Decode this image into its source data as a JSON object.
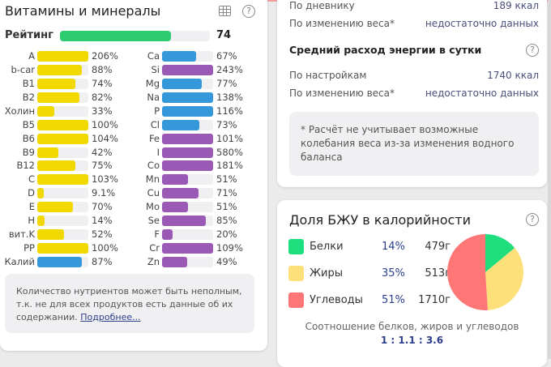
{
  "vitamins": {
    "title": "Витамины и минералы",
    "rating_label": "Рейтинг",
    "rating_value": "74",
    "rating_percent": 74,
    "left": [
      {
        "name": "A",
        "value": "206%",
        "pct": 206,
        "color": "#f1d900"
      },
      {
        "name": "b-car",
        "value": "88%",
        "pct": 88,
        "color": "#f1d900"
      },
      {
        "name": "B1",
        "value": "74%",
        "pct": 74,
        "color": "#f1d900"
      },
      {
        "name": "B2",
        "value": "82%",
        "pct": 82,
        "color": "#f1d900"
      },
      {
        "name": "Холин",
        "value": "33%",
        "pct": 33,
        "color": "#f1d900"
      },
      {
        "name": "B5",
        "value": "100%",
        "pct": 100,
        "color": "#f1d900"
      },
      {
        "name": "B6",
        "value": "104%",
        "pct": 104,
        "color": "#f1d900"
      },
      {
        "name": "B9",
        "value": "42%",
        "pct": 42,
        "color": "#f1d900"
      },
      {
        "name": "B12",
        "value": "75%",
        "pct": 75,
        "color": "#f1d900"
      },
      {
        "name": "C",
        "value": "103%",
        "pct": 103,
        "color": "#f1d900"
      },
      {
        "name": "D",
        "value": "9.1%",
        "pct": 9.1,
        "color": "#f1d900"
      },
      {
        "name": "E",
        "value": "70%",
        "pct": 70,
        "color": "#f1d900"
      },
      {
        "name": "H",
        "value": "14%",
        "pct": 14,
        "color": "#f1d900"
      },
      {
        "name": "вит.K",
        "value": "52%",
        "pct": 52,
        "color": "#f1d900"
      },
      {
        "name": "PP",
        "value": "100%",
        "pct": 100,
        "color": "#f1d900"
      },
      {
        "name": "Калий",
        "value": "87%",
        "pct": 87,
        "color": "#3498db"
      }
    ],
    "right": [
      {
        "name": "Ca",
        "value": "67%",
        "pct": 67,
        "color": "#3498db"
      },
      {
        "name": "Si",
        "value": "243%",
        "pct": 243,
        "color": "#9b59b6"
      },
      {
        "name": "Mg",
        "value": "77%",
        "pct": 77,
        "color": "#3498db"
      },
      {
        "name": "Na",
        "value": "138%",
        "pct": 138,
        "color": "#3498db"
      },
      {
        "name": "P",
        "value": "116%",
        "pct": 116,
        "color": "#3498db"
      },
      {
        "name": "Cl",
        "value": "73%",
        "pct": 73,
        "color": "#3498db"
      },
      {
        "name": "Fe",
        "value": "101%",
        "pct": 101,
        "color": "#9b59b6"
      },
      {
        "name": "I",
        "value": "580%",
        "pct": 580,
        "color": "#9b59b6"
      },
      {
        "name": "Co",
        "value": "181%",
        "pct": 181,
        "color": "#9b59b6"
      },
      {
        "name": "Mn",
        "value": "51%",
        "pct": 51,
        "color": "#9b59b6"
      },
      {
        "name": "Cu",
        "value": "71%",
        "pct": 71,
        "color": "#9b59b6"
      },
      {
        "name": "Mo",
        "value": "51%",
        "pct": 51,
        "color": "#9b59b6"
      },
      {
        "name": "Se",
        "value": "85%",
        "pct": 85,
        "color": "#9b59b6"
      },
      {
        "name": "F",
        "value": "20%",
        "pct": 20,
        "color": "#9b59b6"
      },
      {
        "name": "Cr",
        "value": "109%",
        "pct": 109,
        "color": "#9b59b6"
      },
      {
        "name": "Zn",
        "value": "49%",
        "pct": 49,
        "color": "#9b59b6"
      }
    ],
    "note": "Количество нутриентов может быть неполным, т.к. не для всех продуктов есть данные об их содержании.",
    "more_link": "Подробнее..."
  },
  "energy": {
    "rows_top": [
      {
        "label": "По дневнику",
        "value": "189 ккал"
      },
      {
        "label": "По изменению веса*",
        "value": "недостаточно данных"
      }
    ],
    "avg_title": "Средний расход энергии в сутки",
    "rows_avg": [
      {
        "label": "По настройкам",
        "value": "1740 ккал"
      },
      {
        "label": "По изменению веса*",
        "value": "недостаточно данных"
      }
    ],
    "note": "* Расчёт не учитывает возможные колебания веса из-за изменения водного баланса"
  },
  "macros": {
    "title": "Доля БЖУ в калорийности",
    "items": [
      {
        "name": "Белки",
        "percent": "14%",
        "grams": "479г",
        "share": 14,
        "color": "#1ede7e"
      },
      {
        "name": "Жиры",
        "percent": "35%",
        "grams": "513г",
        "share": 35,
        "color": "#fde07a"
      },
      {
        "name": "Углеводы",
        "percent": "51%",
        "grams": "1710г",
        "share": 51,
        "color": "#ff7676"
      }
    ],
    "ratio_label": "Соотношение белков, жиров и углеводов",
    "ratio_value": "1 : 1.1 : 3.6"
  }
}
